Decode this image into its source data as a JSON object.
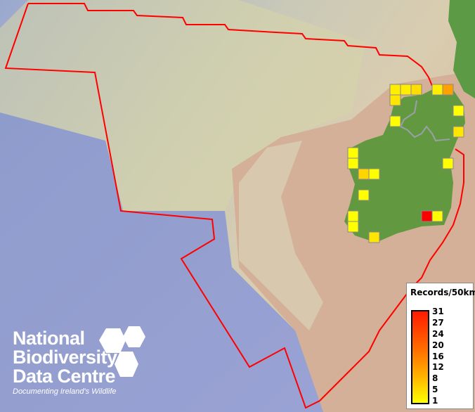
{
  "legend": {
    "title": "Records/50km",
    "ticks": [
      "31",
      "27",
      "24",
      "20",
      "16",
      "12",
      "8",
      "5",
      "1"
    ],
    "color_low": "#ffff00",
    "color_high": "#ff0000"
  },
  "logo": {
    "lines": [
      "National",
      "Biodiversity",
      "Data Centre"
    ],
    "tagline": "Documenting Ireland's Wildlife"
  },
  "boundary_color": "#ff0000",
  "squares": [
    {
      "id": "a",
      "value": 3
    },
    {
      "id": "b",
      "value": 3
    },
    {
      "id": "c",
      "value": 5
    },
    {
      "id": "d",
      "value": 3
    },
    {
      "id": "e",
      "value": 12
    },
    {
      "id": "f",
      "value": 4
    },
    {
      "id": "g",
      "value": 1
    },
    {
      "id": "h",
      "value": 1
    },
    {
      "id": "i",
      "value": 4
    },
    {
      "id": "j",
      "value": 1
    },
    {
      "id": "k",
      "value": 1
    },
    {
      "id": "l",
      "value": 6
    },
    {
      "id": "m",
      "value": 1
    },
    {
      "id": "n",
      "value": 1
    },
    {
      "id": "o",
      "value": 1
    },
    {
      "id": "p",
      "value": 1
    },
    {
      "id": "q",
      "value": 1
    },
    {
      "id": "r",
      "value": 31
    },
    {
      "id": "s",
      "value": 1
    },
    {
      "id": "t",
      "value": 4
    }
  ]
}
